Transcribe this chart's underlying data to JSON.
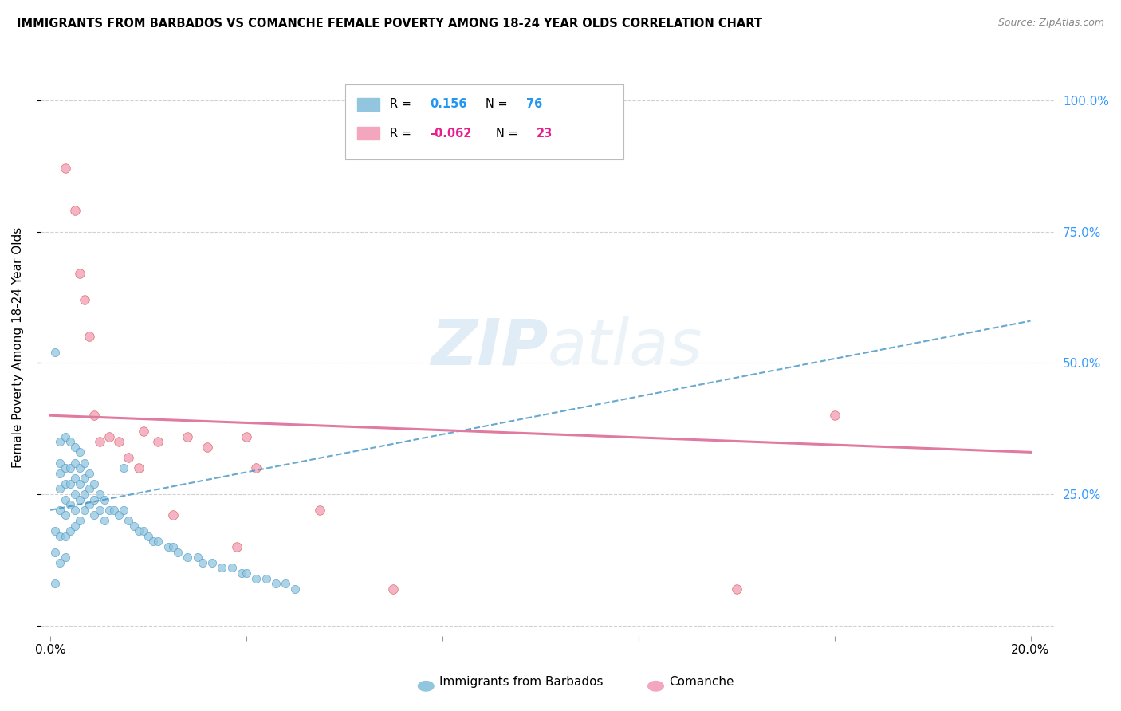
{
  "title": "IMMIGRANTS FROM BARBADOS VS COMANCHE FEMALE POVERTY AMONG 18-24 YEAR OLDS CORRELATION CHART",
  "source": "Source: ZipAtlas.com",
  "ylabel": "Female Poverty Among 18-24 Year Olds",
  "watermark": "ZIPatlas",
  "blue_color": "#92c5de",
  "blue_edge_color": "#4393c3",
  "pink_color": "#f4a6be",
  "pink_edge_color": "#d6604d",
  "blue_line_color": "#4393c3",
  "pink_line_color": "#e07aa0",
  "blue_scatter_x": [
    0.001,
    0.001,
    0.001,
    0.001,
    0.002,
    0.002,
    0.002,
    0.002,
    0.002,
    0.002,
    0.002,
    0.003,
    0.003,
    0.003,
    0.003,
    0.003,
    0.003,
    0.003,
    0.004,
    0.004,
    0.004,
    0.004,
    0.004,
    0.005,
    0.005,
    0.005,
    0.005,
    0.005,
    0.005,
    0.006,
    0.006,
    0.006,
    0.006,
    0.006,
    0.007,
    0.007,
    0.007,
    0.007,
    0.008,
    0.008,
    0.008,
    0.009,
    0.009,
    0.009,
    0.01,
    0.01,
    0.011,
    0.011,
    0.012,
    0.013,
    0.014,
    0.015,
    0.015,
    0.016,
    0.017,
    0.018,
    0.019,
    0.02,
    0.021,
    0.022,
    0.024,
    0.025,
    0.026,
    0.028,
    0.03,
    0.031,
    0.033,
    0.035,
    0.037,
    0.039,
    0.04,
    0.042,
    0.044,
    0.046,
    0.048,
    0.05
  ],
  "blue_scatter_y": [
    0.52,
    0.18,
    0.14,
    0.08,
    0.35,
    0.31,
    0.29,
    0.26,
    0.22,
    0.17,
    0.12,
    0.36,
    0.3,
    0.27,
    0.24,
    0.21,
    0.17,
    0.13,
    0.35,
    0.3,
    0.27,
    0.23,
    0.18,
    0.34,
    0.31,
    0.28,
    0.25,
    0.22,
    0.19,
    0.33,
    0.3,
    0.27,
    0.24,
    0.2,
    0.31,
    0.28,
    0.25,
    0.22,
    0.29,
    0.26,
    0.23,
    0.27,
    0.24,
    0.21,
    0.25,
    0.22,
    0.24,
    0.2,
    0.22,
    0.22,
    0.21,
    0.3,
    0.22,
    0.2,
    0.19,
    0.18,
    0.18,
    0.17,
    0.16,
    0.16,
    0.15,
    0.15,
    0.14,
    0.13,
    0.13,
    0.12,
    0.12,
    0.11,
    0.11,
    0.1,
    0.1,
    0.09,
    0.09,
    0.08,
    0.08,
    0.07
  ],
  "pink_scatter_x": [
    0.003,
    0.005,
    0.006,
    0.007,
    0.008,
    0.009,
    0.01,
    0.012,
    0.014,
    0.016,
    0.018,
    0.019,
    0.022,
    0.025,
    0.028,
    0.032,
    0.038,
    0.04,
    0.042,
    0.055,
    0.07,
    0.16,
    0.14
  ],
  "pink_scatter_y": [
    0.87,
    0.79,
    0.67,
    0.62,
    0.55,
    0.4,
    0.35,
    0.36,
    0.35,
    0.32,
    0.3,
    0.37,
    0.35,
    0.21,
    0.36,
    0.34,
    0.15,
    0.36,
    0.3,
    0.22,
    0.07,
    0.4,
    0.07
  ],
  "blue_trend_x": [
    0.0,
    0.2
  ],
  "blue_trend_y": [
    0.22,
    0.58
  ],
  "pink_trend_x": [
    0.0,
    0.2
  ],
  "pink_trend_y": [
    0.4,
    0.33
  ],
  "x_ticks": [
    0.0,
    0.04,
    0.08,
    0.12,
    0.16,
    0.2
  ],
  "x_tick_labels": [
    "0.0%",
    "",
    "",
    "",
    "",
    "20.0%"
  ],
  "y_ticks": [
    0.0,
    0.25,
    0.5,
    0.75,
    1.0
  ],
  "y_tick_labels_right": [
    "",
    "25.0%",
    "50.0%",
    "75.0%",
    "100.0%"
  ],
  "xlim": [
    -0.002,
    0.205
  ],
  "ylim": [
    -0.02,
    1.08
  ]
}
